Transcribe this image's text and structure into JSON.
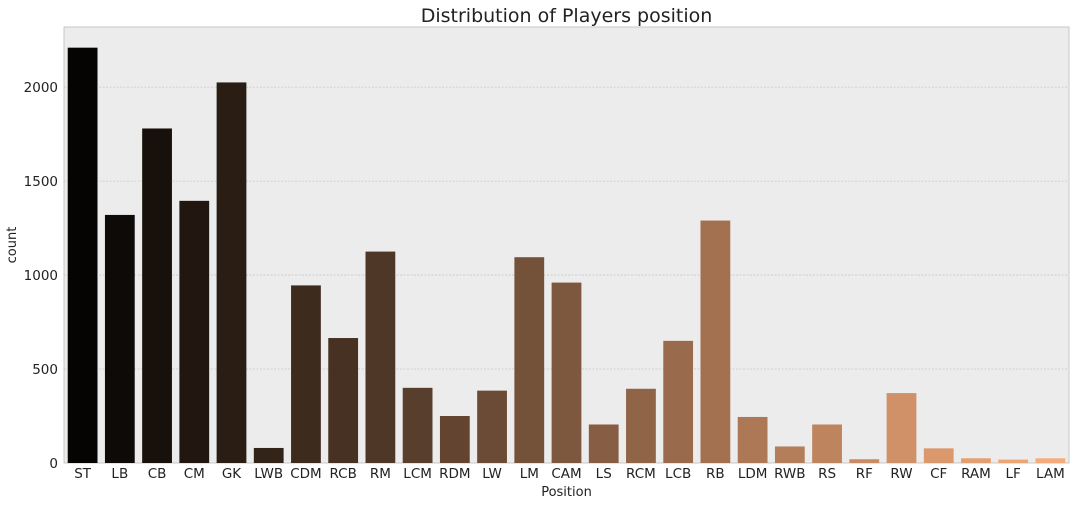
{
  "chart_data": {
    "type": "bar",
    "title": "Distribution of Players position",
    "xlabel": "Position",
    "ylabel": "count",
    "categories": [
      "ST",
      "LB",
      "CB",
      "CM",
      "GK",
      "LWB",
      "CDM",
      "RCB",
      "RM",
      "LCM",
      "RDM",
      "LW",
      "LM",
      "CAM",
      "LS",
      "RCM",
      "LCB",
      "RB",
      "LDM",
      "RWB",
      "RS",
      "RF",
      "RW",
      "CF",
      "RAM",
      "LF",
      "LAM"
    ],
    "values": [
      2210,
      1320,
      1780,
      1395,
      2025,
      80,
      945,
      665,
      1125,
      400,
      250,
      385,
      1095,
      960,
      205,
      395,
      650,
      1290,
      245,
      88,
      205,
      20,
      372,
      78,
      25,
      18,
      25
    ],
    "ylim": [
      0,
      2320
    ],
    "yticks": [
      0,
      500,
      1000,
      1500,
      2000
    ],
    "grid": true,
    "palette_start": "#050402",
    "palette_end": "#f6ab7a",
    "plot_background": "#ececec"
  }
}
